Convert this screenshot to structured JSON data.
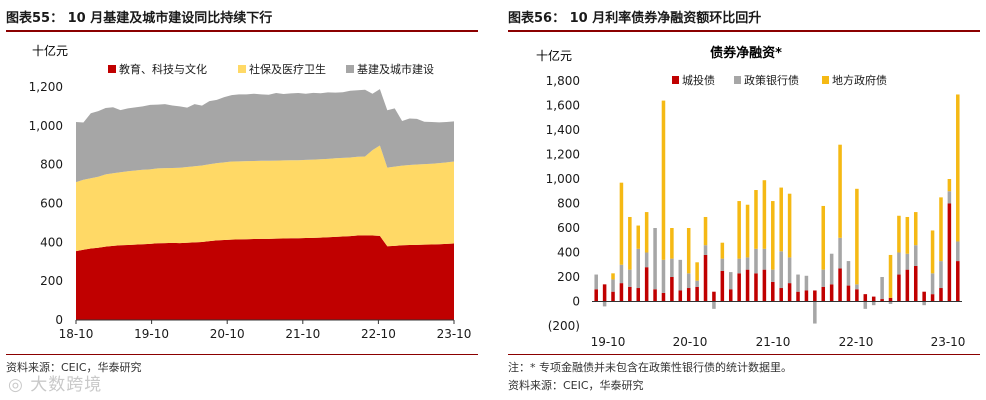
{
  "left": {
    "title": "图表55： 10 月基建及城市建设同比持续下行",
    "unit": "十亿元",
    "source": "资料来源：CEIC，华泰研究",
    "chart_data": {
      "type": "area",
      "stacked": true,
      "ylim": [
        0,
        1200
      ],
      "yticks": [
        0,
        200,
        400,
        600,
        800,
        1000,
        1200
      ],
      "ytick_labels": [
        "0",
        "200",
        "400",
        "600",
        "800",
        "1,000",
        "1,200"
      ],
      "xtick_labels": [
        "18-10",
        "19-10",
        "20-10",
        "21-10",
        "22-10",
        "23-10"
      ],
      "legend": "top",
      "series": [
        {
          "name": "教育、科技与文化",
          "color": "#c00000",
          "values": [
            355,
            362,
            368,
            372,
            378,
            382,
            385,
            386,
            388,
            390,
            392,
            395,
            396,
            397,
            396,
            398,
            400,
            402,
            406,
            410,
            412,
            414,
            415,
            416,
            417,
            418,
            418,
            419,
            420,
            421,
            421,
            422,
            423,
            424,
            426,
            428,
            430,
            432,
            435,
            436,
            435,
            433,
            380,
            382,
            385,
            386,
            387,
            388,
            389,
            390,
            392,
            394
          ]
        },
        {
          "name": "社保及医疗卫生",
          "color": "#ffd966",
          "values": [
            355,
            360,
            362,
            366,
            372,
            374,
            376,
            380,
            382,
            384,
            384,
            386,
            386,
            386,
            388,
            390,
            392,
            394,
            396,
            398,
            400,
            402,
            402,
            402,
            402,
            402,
            402,
            402,
            402,
            402,
            402,
            403,
            403,
            404,
            404,
            405,
            405,
            405,
            406,
            406,
            440,
            466,
            405,
            408,
            410,
            412,
            414,
            415,
            416,
            418,
            420,
            422
          ]
        },
        {
          "name": "基建及城市建设",
          "color": "#a6a6a6",
          "values": [
            310,
            295,
            335,
            338,
            342,
            340,
            320,
            324,
            325,
            326,
            332,
            328,
            330,
            322,
            316,
            306,
            320,
            308,
            325,
            326,
            336,
            342,
            345,
            344,
            346,
            342,
            340,
            348,
            342,
            344,
            346,
            340,
            344,
            340,
            342,
            338,
            338,
            344,
            342,
            344,
            290,
            290,
            295,
            300,
            230,
            240,
            235,
            218,
            215,
            210,
            208,
            207
          ]
        }
      ]
    }
  },
  "right": {
    "title": "图表56： 10 月利率债券净融资额环比回升",
    "unit": "十亿元",
    "source": "资料来源：CEIC，华泰研究",
    "footnote": "注：* 专项金融债并未包含在政策性银行债的统计数据里。",
    "chart_data": {
      "type": "bar",
      "stacked": true,
      "title": "债券净融资*",
      "ylim": [
        -200,
        1800
      ],
      "yticks": [
        -200,
        0,
        200,
        400,
        600,
        800,
        1000,
        1200,
        1400,
        1600,
        1800
      ],
      "ytick_labels": [
        "(200)",
        "0",
        "200",
        "400",
        "600",
        "800",
        "1,000",
        "1,200",
        "1,400",
        "1,600",
        "1,800"
      ],
      "xtick_labels": [
        "19-10",
        "20-10",
        "21-10",
        "22-10",
        "23-10"
      ],
      "legend": "top",
      "series": [
        {
          "name": "城投债",
          "color": "#c00000",
          "values": [
            100,
            140,
            80,
            150,
            120,
            110,
            280,
            100,
            70,
            200,
            90,
            110,
            120,
            380,
            80,
            250,
            100,
            230,
            260,
            230,
            260,
            160,
            110,
            150,
            80,
            90,
            90,
            120,
            140,
            270,
            130,
            100,
            60,
            40,
            20,
            30,
            220,
            260,
            290,
            80,
            60,
            110,
            800,
            330
          ]
        },
        {
          "name": "政策银行债",
          "color": "#a6a6a6",
          "values": [
            120,
            -40,
            100,
            150,
            140,
            320,
            120,
            500,
            270,
            150,
            250,
            120,
            50,
            80,
            -60,
            100,
            140,
            120,
            100,
            200,
            170,
            100,
            300,
            210,
            140,
            120,
            -180,
            140,
            250,
            250,
            200,
            40,
            -60,
            -30,
            180,
            -20,
            180,
            130,
            170,
            -30,
            170,
            220,
            100,
            160
          ]
        },
        {
          "name": "地方政府债",
          "color": "#f5b914",
          "values": [
            0,
            0,
            50,
            670,
            430,
            190,
            330,
            0,
            1300,
            250,
            0,
            370,
            150,
            230,
            0,
            130,
            0,
            470,
            430,
            480,
            560,
            560,
            520,
            520,
            0,
            0,
            0,
            520,
            0,
            760,
            0,
            780,
            0,
            0,
            0,
            350,
            300,
            300,
            270,
            0,
            350,
            520,
            100,
            1200
          ]
        }
      ]
    }
  }
}
